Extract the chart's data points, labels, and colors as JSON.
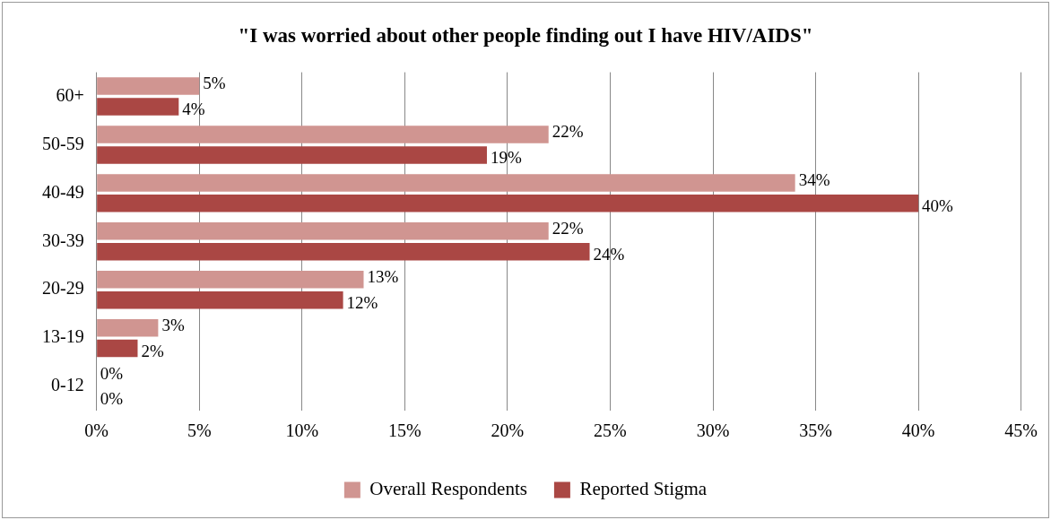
{
  "chart_data": {
    "type": "bar",
    "orientation": "horizontal",
    "title": "\"I was worried about other people finding out I have HIV/AIDS\"",
    "categories": [
      "60+",
      "50-59",
      "40-49",
      "30-39",
      "20-29",
      "13-19",
      "0-12"
    ],
    "series": [
      {
        "name": "Overall Respondents",
        "color": "#d09591",
        "values": [
          5,
          22,
          34,
          22,
          13,
          3,
          0
        ],
        "value_labels": [
          "5%",
          "22%",
          "34%",
          "22%",
          "13%",
          "3%",
          "0%"
        ]
      },
      {
        "name": "Reported Stigma",
        "color": "#aa4744",
        "values": [
          4,
          19,
          40,
          24,
          12,
          2,
          0
        ],
        "value_labels": [
          "4%",
          "19%",
          "40%",
          "24%",
          "12%",
          "2%",
          "0%"
        ]
      }
    ],
    "xlim": [
      0,
      45
    ],
    "xticks": [
      {
        "value": 0,
        "label": "0%"
      },
      {
        "value": 5,
        "label": "5%"
      },
      {
        "value": 10,
        "label": "10%"
      },
      {
        "value": 15,
        "label": "15%"
      },
      {
        "value": 20,
        "label": "20%"
      },
      {
        "value": 25,
        "label": "25%"
      },
      {
        "value": 30,
        "label": "30%"
      },
      {
        "value": 35,
        "label": "35%"
      },
      {
        "value": 40,
        "label": "40%"
      },
      {
        "value": 45,
        "label": "45%"
      }
    ],
    "grid": "x",
    "legend": "bottom"
  }
}
